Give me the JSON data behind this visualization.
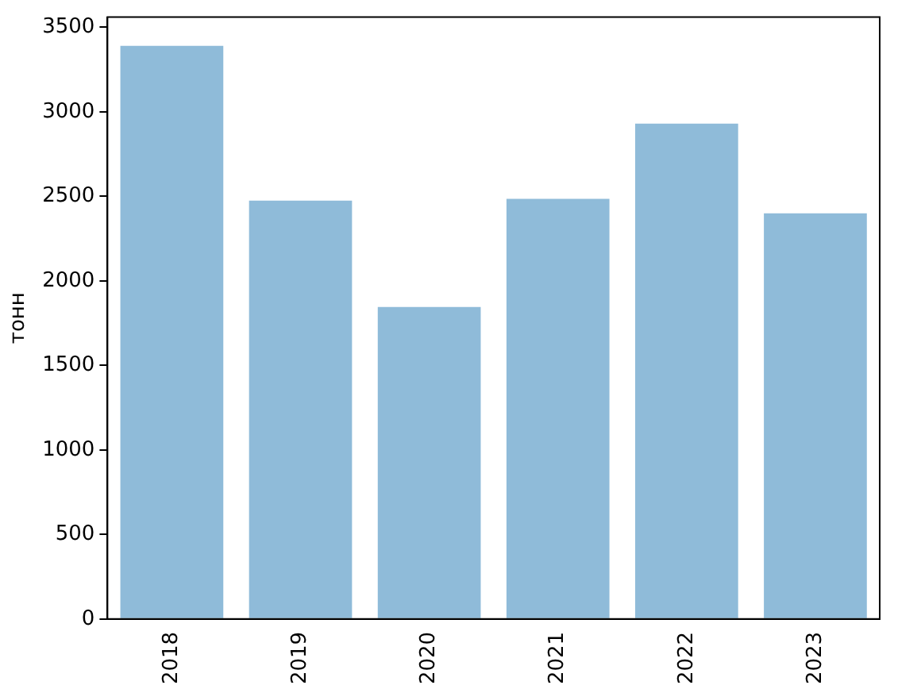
{
  "chart_data": {
    "type": "bar",
    "ylabel": "тонн",
    "categories": [
      "2018",
      "2019",
      "2020",
      "2021",
      "2022",
      "2023"
    ],
    "values": [
      3390,
      2475,
      1845,
      2485,
      2930,
      2400
    ],
    "color": "#8fbbd9",
    "ylim": [
      0,
      3560
    ],
    "yticks": [
      0,
      500,
      1000,
      1500,
      2000,
      2500,
      3000,
      3500
    ],
    "grid": false,
    "legend": false
  }
}
